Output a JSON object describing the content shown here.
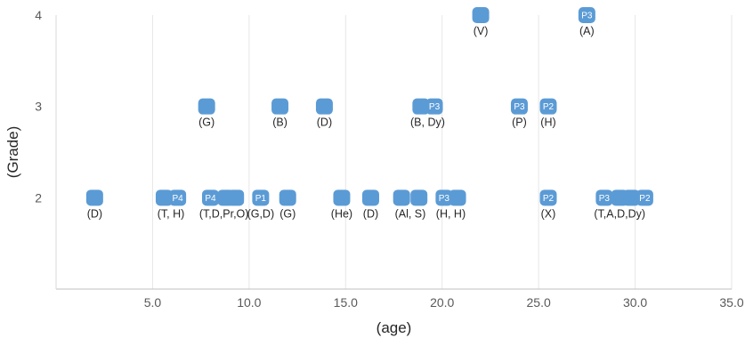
{
  "chart_data": {
    "type": "scatter",
    "title": "",
    "xlabel": "(age)",
    "ylabel": "(Grade)",
    "xlim": [
      0,
      35
    ],
    "ylim": [
      1,
      4
    ],
    "x_ticks": [
      "5.0",
      "10.0",
      "15.0",
      "20.0",
      "25.0",
      "30.0",
      "35.0"
    ],
    "y_ticks": [
      "2",
      "3",
      "4"
    ],
    "grid": "vertical",
    "marker_color": "#5b9bd5",
    "points": [
      {
        "x": 2.0,
        "y": 2,
        "label": "(D)"
      },
      {
        "x": 5.6,
        "y": 2
      },
      {
        "x": 6.3,
        "y": 2,
        "tag": "P4"
      },
      {
        "x": 5.95,
        "y": 2,
        "label": "(T, H)"
      },
      {
        "x": 8.0,
        "y": 2,
        "tag": "P4"
      },
      {
        "x": 8.8,
        "y": 2
      },
      {
        "x": 9.3,
        "y": 2
      },
      {
        "x": 8.7,
        "y": 2,
        "label": "(T,D,Pr,O)"
      },
      {
        "x": 10.6,
        "y": 2,
        "tag": "P1",
        "label": "(G,D)"
      },
      {
        "x": 12.0,
        "y": 2,
        "label": "(G)"
      },
      {
        "x": 14.8,
        "y": 2,
        "label": "(He)"
      },
      {
        "x": 16.3,
        "y": 2,
        "label": "(D)"
      },
      {
        "x": 17.9,
        "y": 2
      },
      {
        "x": 18.8,
        "y": 2
      },
      {
        "x": 18.35,
        "y": 2,
        "label": "(Al, S)"
      },
      {
        "x": 20.1,
        "y": 2,
        "tag": "P3"
      },
      {
        "x": 20.8,
        "y": 2
      },
      {
        "x": 20.45,
        "y": 2,
        "label": "(H, H)"
      },
      {
        "x": 25.5,
        "y": 2,
        "tag": "P2",
        "label": "(X)"
      },
      {
        "x": 28.4,
        "y": 2,
        "tag": "P3"
      },
      {
        "x": 29.2,
        "y": 2
      },
      {
        "x": 29.8,
        "y": 2
      },
      {
        "x": 30.5,
        "y": 2,
        "tag": "P2"
      },
      {
        "x": 29.2,
        "y": 2,
        "label": "(T,A,D,Dy)"
      },
      {
        "x": 7.8,
        "y": 3,
        "label": "(G)"
      },
      {
        "x": 11.6,
        "y": 3,
        "label": "(B)"
      },
      {
        "x": 13.9,
        "y": 3,
        "label": "(D)"
      },
      {
        "x": 18.9,
        "y": 3
      },
      {
        "x": 19.6,
        "y": 3,
        "tag": "P3"
      },
      {
        "x": 19.25,
        "y": 3,
        "label": "(B, Dy)"
      },
      {
        "x": 24.0,
        "y": 3,
        "tag": "P3",
        "label": "(P)"
      },
      {
        "x": 25.5,
        "y": 3,
        "tag": "P2",
        "label": "(H)"
      },
      {
        "x": 22.0,
        "y": 4,
        "label": "(V)"
      },
      {
        "x": 27.5,
        "y": 4,
        "tag": "P3",
        "label": "(A)"
      }
    ]
  }
}
